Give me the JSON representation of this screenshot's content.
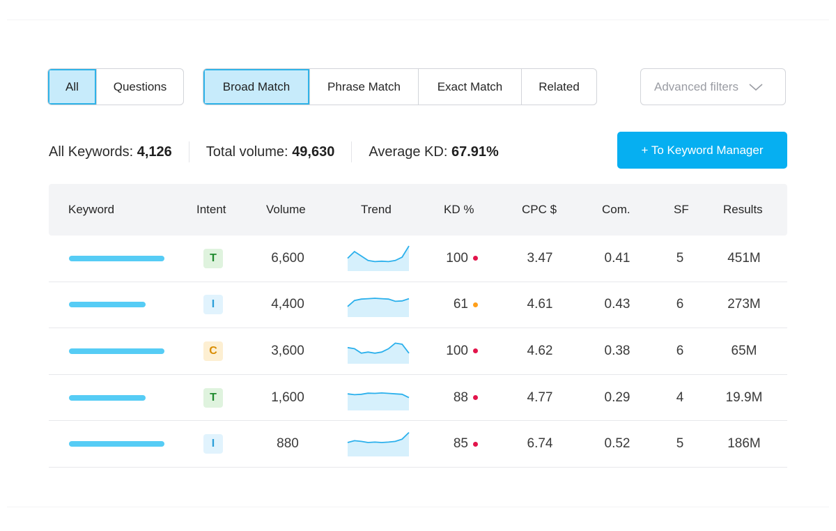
{
  "filters": {
    "type_options": [
      {
        "label": "All",
        "active": true
      },
      {
        "label": "Questions",
        "active": false
      }
    ],
    "match_options": [
      {
        "label": "Broad Match",
        "active": true
      },
      {
        "label": "Phrase Match",
        "active": false
      },
      {
        "label": "Exact Match",
        "active": false
      },
      {
        "label": "Related",
        "active": false
      }
    ],
    "advanced_label": "Advanced filters",
    "advanced_icon": "chevron-down-icon"
  },
  "stats": {
    "all_keywords_label": "All Keywords:",
    "all_keywords_value": "4,126",
    "total_volume_label": "Total volume:",
    "total_volume_value": "49,630",
    "avg_kd_label": "Average KD:",
    "avg_kd_value": "67.91%"
  },
  "cta_label": "+ To Keyword Manager",
  "colors": {
    "accent": "#06aff1",
    "active_bg": "#c7ebfb",
    "keyword_bar": "#56ccf5",
    "kd_high": "#e2144b",
    "kd_mid": "#ff9f1a",
    "intent_T_bg": "#dff3de",
    "intent_T_fg": "#1f8a2e",
    "intent_I_bg": "#e1f3fd",
    "intent_I_fg": "#2b9fd9",
    "intent_C_bg": "#fdefd2",
    "intent_C_fg": "#d98c00"
  },
  "table": {
    "headers": {
      "keyword": "Keyword",
      "intent": "Intent",
      "volume": "Volume",
      "trend": "Trend",
      "kd": "KD %",
      "cpc": "CPC $",
      "com": "Com.",
      "sf": "SF",
      "results": "Results"
    },
    "rows": [
      {
        "kw_bar": 0.75,
        "intent": "T",
        "volume": "6,600",
        "trend": [
          0.45,
          0.75,
          0.55,
          0.35,
          0.3,
          0.32,
          0.3,
          0.35,
          0.5,
          1.0
        ],
        "kd": "100",
        "kd_level": "high",
        "cpc": "3.47",
        "com": "0.41",
        "sf": "5",
        "results": "451M"
      },
      {
        "kw_bar": 0.6,
        "intent": "I",
        "volume": "4,400",
        "trend": [
          0.35,
          0.62,
          0.68,
          0.7,
          0.72,
          0.7,
          0.68,
          0.58,
          0.6,
          0.7
        ],
        "kd": "61",
        "kd_level": "mid",
        "cpc": "4.61",
        "com": "0.43",
        "sf": "6",
        "results": "273M"
      },
      {
        "kw_bar": 0.75,
        "intent": "C",
        "volume": "3,600",
        "trend": [
          0.6,
          0.55,
          0.35,
          0.4,
          0.35,
          0.4,
          0.55,
          0.8,
          0.75,
          0.35
        ],
        "kd": "100",
        "kd_level": "high",
        "cpc": "4.62",
        "com": "0.38",
        "sf": "6",
        "results": "65M"
      },
      {
        "kw_bar": 0.6,
        "intent": "T",
        "volume": "1,600",
        "trend": [
          0.62,
          0.58,
          0.6,
          0.65,
          0.64,
          0.66,
          0.64,
          0.62,
          0.6,
          0.45
        ],
        "kd": "88",
        "kd_level": "high",
        "cpc": "4.77",
        "com": "0.29",
        "sf": "4",
        "results": "19.9M"
      },
      {
        "kw_bar": 0.75,
        "intent": "I",
        "volume": "880",
        "trend": [
          0.5,
          0.58,
          0.55,
          0.5,
          0.52,
          0.5,
          0.52,
          0.55,
          0.65,
          0.95
        ],
        "kd": "85",
        "kd_level": "high",
        "cpc": "6.74",
        "com": "0.52",
        "sf": "5",
        "results": "186M"
      }
    ]
  }
}
